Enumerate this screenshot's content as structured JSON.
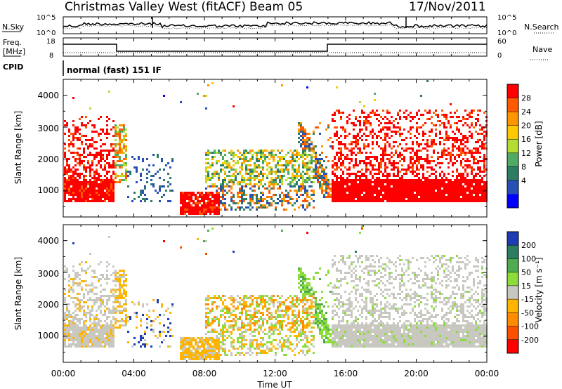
{
  "header": {
    "title": "Christmas Valley West (fitACF)",
    "beam": "Beam 05",
    "date": "17/Nov/2011"
  },
  "noise_panel": {
    "left_label": "N.Sky",
    "left_ticks": [
      "10^5",
      "10^0"
    ],
    "right_ticks": [
      "10^5",
      "10^0"
    ],
    "right_label": "N.Search"
  },
  "freq_panel": {
    "left_label_1": "Freq.",
    "left_label_2": "[MHz]",
    "left_ticks": [
      "18",
      "8"
    ],
    "right_ticks": [
      "60",
      "0"
    ],
    "right_label": "Nave"
  },
  "cpid_panel": {
    "label": "CPID",
    "text": "normal (fast) 151 IF"
  },
  "power_panel": {
    "ylabel": "Slant Range [km]",
    "yticks": [
      "1000",
      "2000",
      "3000",
      "4000"
    ],
    "cbar_label": "Power [dB]",
    "cbar_ticks": [
      "28",
      "24",
      "20",
      "16",
      "12",
      "8",
      "4"
    ],
    "colors": [
      "#ff0000",
      "#ff5a00",
      "#ff9600",
      "#ffc800",
      "#b4dc32",
      "#50aa64",
      "#2d7d64",
      "#2850b4",
      "#0000ff"
    ]
  },
  "velocity_panel": {
    "ylabel": "Slant Range [km]",
    "yticks": [
      "1000",
      "2000",
      "3000",
      "4000"
    ],
    "cbar_label": "Velocity [m s⁻¹]",
    "cbar_ticks": [
      "200",
      "100",
      "50",
      "15",
      "-15",
      "-50",
      "-100",
      "-200"
    ],
    "colors": [
      "#1e3cb4",
      "#2d7d64",
      "#50aa50",
      "#8cdc3c",
      "#c8c8c0",
      "#ffb400",
      "#ff8c00",
      "#ff5000",
      "#ff0000"
    ]
  },
  "xaxis": {
    "label": "Time UT",
    "ticks": [
      "00:00",
      "04:00",
      "08:00",
      "12:00",
      "16:00",
      "20:00",
      "00:00"
    ]
  },
  "chart_data": [
    {
      "type": "line",
      "title": "N.Sky / N.Search noise",
      "x": "time UT",
      "yscale": "log",
      "ylim": [
        1,
        100000
      ],
      "series": [
        {
          "name": "N.Sky",
          "description_values": "near 10^0 with spikes near 05:00 and 19:00"
        }
      ]
    },
    {
      "type": "line",
      "title": "Freq / Nave",
      "x": [
        "00:00",
        "03:00",
        "03:00",
        "15:00",
        "15:00",
        "24:00"
      ],
      "series": [
        {
          "name": "Freq [MHz]",
          "values": [
            17,
            17,
            10,
            10,
            17,
            17
          ]
        }
      ],
      "ylim": [
        8,
        18
      ]
    },
    {
      "type": "heatmap",
      "xlabel": "Time UT",
      "ylabel": "Slant Range [km]",
      "xlim": [
        "00:00",
        "24:00"
      ],
      "ylim": [
        180,
        4500
      ],
      "colorbar": {
        "label": "Power [dB]",
        "ticks": [
          4,
          8,
          12,
          16,
          20,
          24,
          28
        ]
      }
    },
    {
      "type": "heatmap",
      "xlabel": "Time UT",
      "ylabel": "Slant Range [km]",
      "xlim": [
        "00:00",
        "24:00"
      ],
      "ylim": [
        180,
        4500
      ],
      "colorbar": {
        "label": "Velocity [m s⁻¹]",
        "ticks": [
          -200,
          -100,
          -50,
          -15,
          15,
          50,
          100,
          200
        ]
      }
    }
  ]
}
